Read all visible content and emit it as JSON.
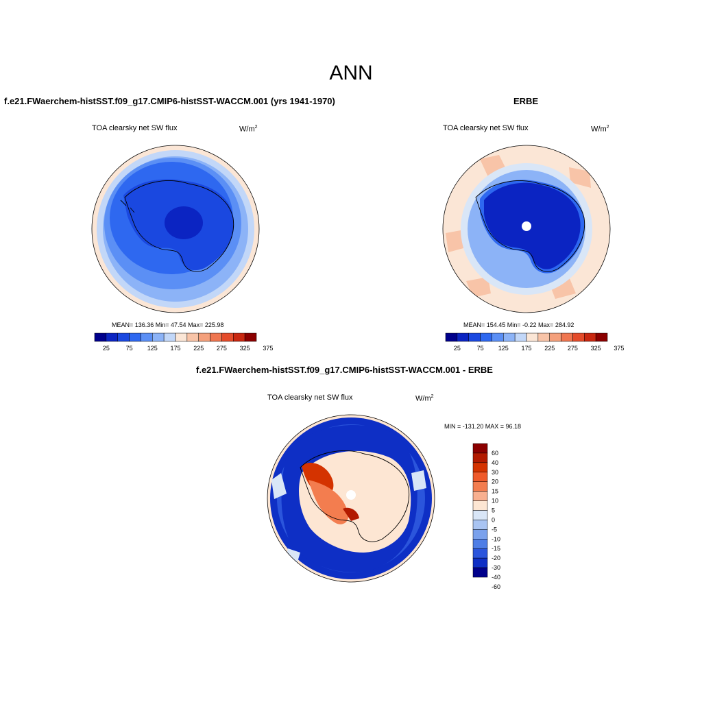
{
  "title": "ANN",
  "palettes": {
    "field": [
      "#00008b",
      "#0b24c2",
      "#1a48e0",
      "#2e68f0",
      "#5b8ff5",
      "#8cb3f7",
      "#c2d7f8",
      "#fbe6d6",
      "#f8c4a8",
      "#f4a07c",
      "#ef7650",
      "#e44b2a",
      "#c92710",
      "#8b0000"
    ],
    "diff": [
      "#8b0000",
      "#b21a00",
      "#d43300",
      "#ef5a2a",
      "#f37d4f",
      "#f8b090",
      "#fde6d3",
      "#d9e6f7",
      "#a9c4f2",
      "#7aa1ec",
      "#4f7ee6",
      "#2b55dc",
      "#0e2fc5",
      "#00008b"
    ]
  },
  "panels": [
    {
      "id": "model",
      "title": "f.e21.FWaerchem-histSST.f09_g17.CMIP6-histSST-WACCM.001 (yrs 1941-1970)",
      "left_label": "TOA clearsky net SW flux",
      "units_base": "W/m",
      "units_exp": "2",
      "stats": "MEAN= 136.36  Min=  47.54  Max= 225.98"
    },
    {
      "id": "obs",
      "title": "ERBE",
      "left_label": "TOA clearsky net SW flux",
      "units_base": "W/m",
      "units_exp": "2",
      "stats": "MEAN= 154.45  Min=  -0.22  Max= 284.92"
    },
    {
      "id": "diff",
      "title": "f.e21.FWaerchem-histSST.f09_g17.CMIP6-histSST-WACCM.001 - ERBE",
      "left_label": "TOA clearsky net SW flux",
      "units_base": "W/m",
      "units_exp": "2",
      "stats": "MIN = -131.20 MAX =  96.18"
    }
  ],
  "chart_data": [
    {
      "type": "heatmap",
      "title": "f.e21.FWaerchem-histSST.f09_g17.CMIP6-histSST-WACCM.001 (yrs 1941-1970)",
      "variable": "TOA clearsky net SW flux",
      "units": "W/m2",
      "projection": "south polar stereographic",
      "mean": 136.36,
      "min": 47.54,
      "max": 225.98,
      "colorbar_levels": [
        25,
        50,
        75,
        100,
        125,
        150,
        175,
        200,
        225,
        250,
        275,
        300,
        325,
        350,
        375
      ],
      "colorbar_tick_labels": [
        "25",
        "75",
        "125",
        "175",
        "225",
        "275",
        "325",
        "375"
      ]
    },
    {
      "type": "heatmap",
      "title": "ERBE",
      "variable": "TOA clearsky net SW flux",
      "units": "W/m2",
      "projection": "south polar stereographic",
      "mean": 154.45,
      "min": -0.22,
      "max": 284.92,
      "colorbar_levels": [
        25,
        50,
        75,
        100,
        125,
        150,
        175,
        200,
        225,
        250,
        275,
        300,
        325,
        350,
        375
      ],
      "colorbar_tick_labels": [
        "25",
        "75",
        "125",
        "175",
        "225",
        "275",
        "325",
        "375"
      ]
    },
    {
      "type": "heatmap",
      "title": "f.e21.FWaerchem-histSST.f09_g17.CMIP6-histSST-WACCM.001 - ERBE",
      "variable": "TOA clearsky net SW flux",
      "units": "W/m2",
      "projection": "south polar stereographic",
      "min": -131.2,
      "max": 96.18,
      "colorbar_levels": [
        60,
        40,
        30,
        20,
        15,
        10,
        5,
        0,
        -5,
        -10,
        -15,
        -20,
        -30,
        -40,
        -60
      ],
      "colorbar_tick_labels": [
        "60",
        "40",
        "30",
        "20",
        "15",
        "10",
        "5",
        "0",
        "-5",
        "-10",
        "-15",
        "-20",
        "-30",
        "-40",
        "-60"
      ]
    }
  ]
}
